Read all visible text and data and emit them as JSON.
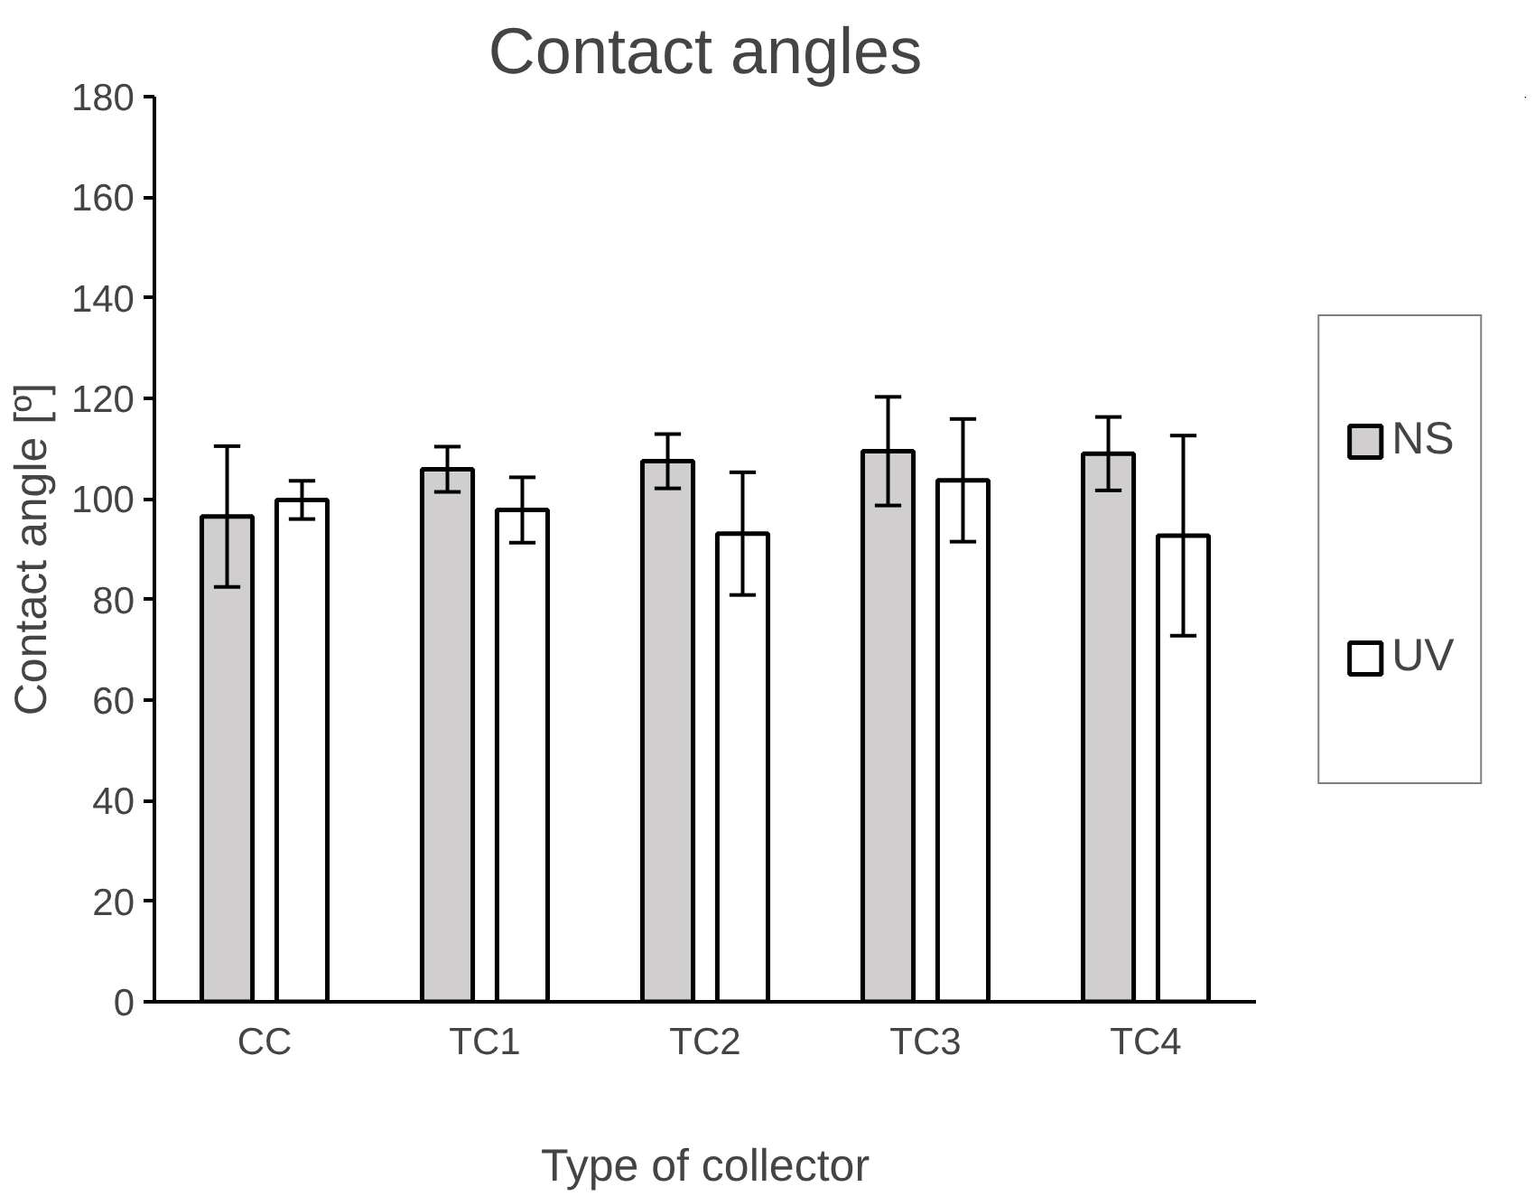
{
  "chart_data": {
    "type": "bar",
    "title": "Contact angles",
    "xlabel": "Type of collector",
    "ylabel": "Contact angle [º]",
    "categories": [
      "CC",
      "TC1",
      "TC2",
      "TC3",
      "TC4"
    ],
    "series": [
      {
        "name": "NS",
        "color": "#d0cece",
        "values": [
          96.5,
          105.9,
          107.5,
          109.5,
          109
        ],
        "errors": [
          14,
          4.5,
          5.4,
          10.8,
          7.3
        ]
      },
      {
        "name": "UV",
        "color": "#ffffff",
        "values": [
          99.8,
          97.8,
          93.1,
          103.7,
          92.7
        ],
        "errors": [
          3.8,
          6.5,
          12.2,
          12.2,
          19.9
        ]
      }
    ],
    "ylim": [
      0,
      180
    ],
    "yticks": [
      0,
      20,
      40,
      60,
      80,
      100,
      120,
      140,
      160,
      180
    ],
    "grid": false,
    "legend": "right"
  }
}
